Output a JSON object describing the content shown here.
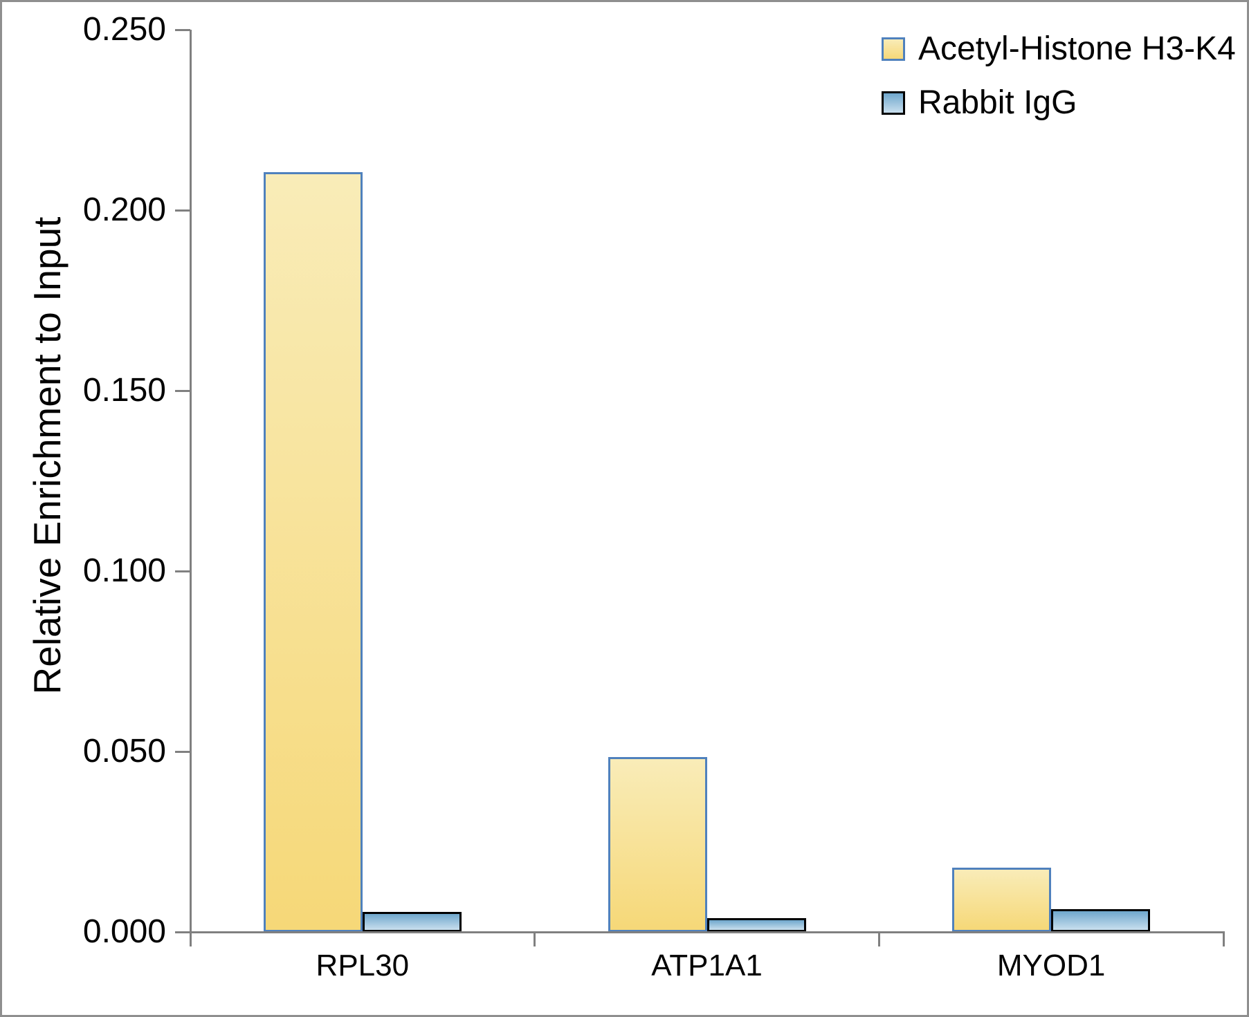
{
  "chart": {
    "ylabel": "Relative Enrichment to Input",
    "background_color": "#FFFFFF",
    "outer_border_color": "#8F8F8F",
    "axis_color": "#808080",
    "text_color": "#000000"
  },
  "chart_data": {
    "type": "bar",
    "title": "",
    "xlabel": "",
    "ylabel": "Relative Enrichment to Input",
    "categories": [
      "RPL30",
      "ATP1A1",
      "MYOD1"
    ],
    "series": [
      {
        "name": "Acetyl-Histone H3-K4",
        "values": [
          0.2105,
          0.0485,
          0.0178
        ],
        "fill_top": "#F9ECB8",
        "fill_bottom": "#F6D878",
        "border_color": "#4F81BD"
      },
      {
        "name": "Rabbit IgG",
        "values": [
          0.0055,
          0.0038,
          0.0064
        ],
        "fill_top": "#6FA7CC",
        "fill_bottom": "#C9DFEE",
        "border_color": "#000000"
      }
    ],
    "ylim": [
      0.0,
      0.25
    ],
    "ytick_step": 0.05,
    "ytick_labels": [
      "0.000",
      "0.050",
      "0.100",
      "0.150",
      "0.200",
      "0.250"
    ],
    "grid": false,
    "legend_position": "top-right"
  }
}
